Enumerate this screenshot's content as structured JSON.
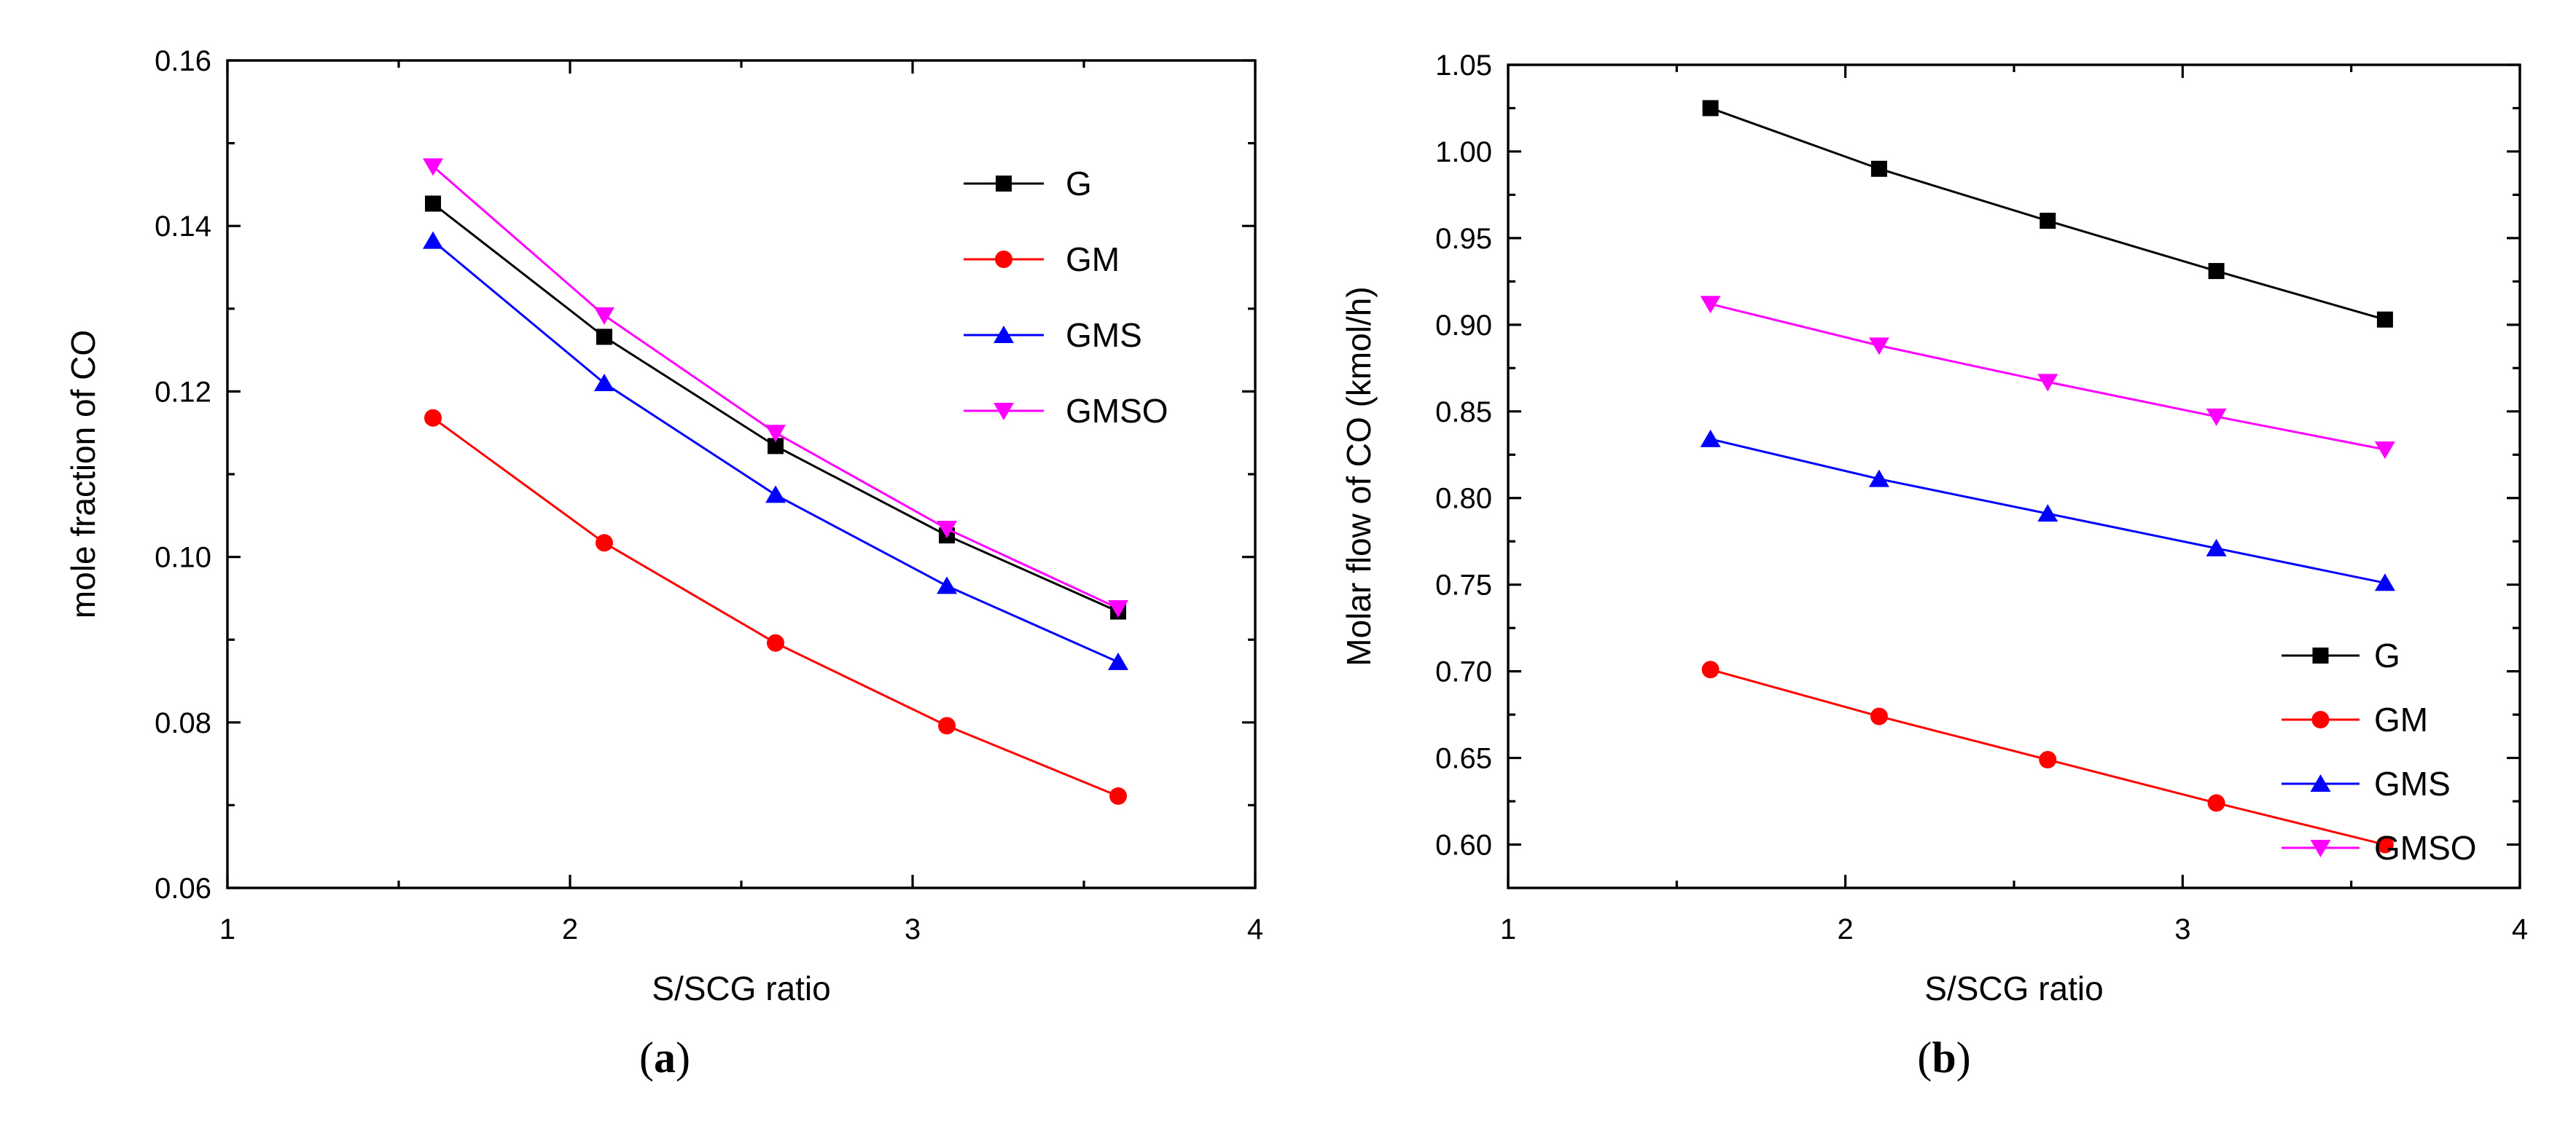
{
  "chart_data": [
    {
      "type": "line",
      "panel": "a",
      "caption_open": "(",
      "caption_letter": "a",
      "caption_close": ")",
      "xlabel": "S/SCG ratio",
      "ylabel": "mole fraction of CO",
      "xlim": [
        1,
        4
      ],
      "ylim": [
        0.06,
        0.16
      ],
      "xticks": [
        1,
        2,
        3,
        4
      ],
      "xtick_labels": [
        "1",
        "2",
        "3",
        "4"
      ],
      "yticks": [
        0.06,
        0.08,
        0.1,
        0.12,
        0.14,
        0.16
      ],
      "ytick_labels": [
        "0.06",
        "0.08",
        "0.10",
        "0.12",
        "0.14",
        "0.16"
      ],
      "legend_position": "top-right",
      "x": [
        1.6,
        2.1,
        2.6,
        3.1,
        3.6
      ],
      "series": [
        {
          "name": "G",
          "color": "#000000",
          "marker": "square",
          "values": [
            0.1427,
            0.1266,
            0.1134,
            0.1026,
            0.0934
          ]
        },
        {
          "name": "GM",
          "color": "#ff0000",
          "marker": "circle",
          "values": [
            0.1168,
            0.1017,
            0.0896,
            0.0796,
            0.0711
          ]
        },
        {
          "name": "GMS",
          "color": "#0000ff",
          "marker": "triangle-up",
          "values": [
            0.1382,
            0.121,
            0.1075,
            0.0965,
            0.0873
          ]
        },
        {
          "name": "GMSO",
          "color": "#ff00ff",
          "marker": "triangle-down",
          "values": [
            0.1472,
            0.1292,
            0.115,
            0.1034,
            0.0938
          ]
        }
      ]
    },
    {
      "type": "line",
      "panel": "b",
      "caption_open": "(",
      "caption_letter": "b",
      "caption_close": ")",
      "xlabel": "S/SCG ratio",
      "ylabel": "Molar flow of CO  (kmol/h)",
      "xlim": [
        1,
        4
      ],
      "ylim": [
        0.575,
        1.05
      ],
      "xticks": [
        1,
        2,
        3,
        4
      ],
      "xtick_labels": [
        "1",
        "2",
        "3",
        "4"
      ],
      "yticks": [
        0.6,
        0.65,
        0.7,
        0.75,
        0.8,
        0.85,
        0.9,
        0.95,
        1.0,
        1.05
      ],
      "ytick_labels": [
        "0.60",
        "0.65",
        "0.70",
        "0.75",
        "0.80",
        "0.85",
        "0.90",
        "0.95",
        "1.00",
        "1.05"
      ],
      "legend_position": "bottom-right",
      "x": [
        1.6,
        2.1,
        2.6,
        3.1,
        3.6
      ],
      "series": [
        {
          "name": "G",
          "color": "#000000",
          "marker": "square",
          "values": [
            1.025,
            0.99,
            0.96,
            0.931,
            0.903
          ]
        },
        {
          "name": "GM",
          "color": "#ff0000",
          "marker": "circle",
          "values": [
            0.701,
            0.674,
            0.649,
            0.624,
            0.6
          ]
        },
        {
          "name": "GMS",
          "color": "#0000ff",
          "marker": "triangle-up",
          "values": [
            0.834,
            0.811,
            0.791,
            0.771,
            0.751
          ]
        },
        {
          "name": "GMSO",
          "color": "#ff00ff",
          "marker": "triangle-down",
          "values": [
            0.912,
            0.888,
            0.867,
            0.847,
            0.828
          ]
        }
      ]
    }
  ]
}
